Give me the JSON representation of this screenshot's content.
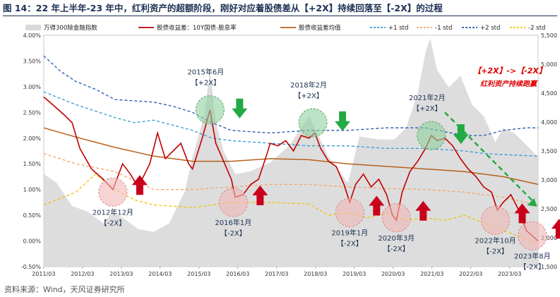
{
  "header": {
    "title": "图 14：22 年上半年-23 年中，红利资产的超额阶段，刚好对应着股债差从【+2X】持续回落至【-2X】的过程",
    "source": "资料来源：Wind，天风证券研究所"
  },
  "chart_data": {
    "type": "line",
    "x_tick_labels": [
      "2011/03",
      "2012/03",
      "2013/03",
      "2014/03",
      "2015/03",
      "2016/03",
      "2017/03",
      "2018/03",
      "2019/03",
      "2020/03",
      "2021/03",
      "2022/03",
      "2023/03"
    ],
    "y_left": {
      "ticks": [
        "4.00%",
        "3.50%",
        "3.00%",
        "2.50%",
        "2.00%",
        "1.50%",
        "1.00%",
        "0.50%",
        "0.00%",
        "-0.50%"
      ],
      "min": -0.5,
      "max": 4.0
    },
    "y_right": {
      "ticks": [
        "5,500",
        "5,000",
        "4,500",
        "4,000",
        "3,500",
        "3,000",
        "2,500",
        "2,000",
        "1,500"
      ],
      "min": 1500,
      "max": 5500
    },
    "legend": [
      {
        "name": "万得300除金融指数",
        "color": "#d9d9d9",
        "kind": "area"
      },
      {
        "name": "股债收益差：10Y国债-股息率",
        "color": "#c00000",
        "kind": "line"
      },
      {
        "name": "股债收益差均值",
        "color": "#b8601c",
        "kind": "line"
      },
      {
        "name": "+1 std",
        "color": "#2e9bd6",
        "kind": "dash"
      },
      {
        "name": "-1 std",
        "color": "#f4a66a",
        "kind": "dash"
      },
      {
        "name": "+2 std",
        "color": "#1f5ba8",
        "kind": "dash"
      },
      {
        "name": "-2 std",
        "color": "#f2c200",
        "kind": "dash"
      }
    ],
    "t_range": [
      2011.17,
      2023.9
    ],
    "spread": {
      "t": [
        2011.17,
        2011.4,
        2011.7,
        2011.9,
        2012.1,
        2012.4,
        2012.7,
        2012.95,
        2013.2,
        2013.4,
        2013.6,
        2013.9,
        2014.1,
        2014.3,
        2014.5,
        2014.7,
        2014.9,
        2015.0,
        2015.25,
        2015.45,
        2015.6,
        2015.8,
        2016.0,
        2016.1,
        2016.3,
        2016.5,
        2016.7,
        2016.9,
        2017.0,
        2017.2,
        2017.4,
        2017.6,
        2017.8,
        2018.0,
        2018.15,
        2018.3,
        2018.5,
        2018.7,
        2018.9,
        2019.05,
        2019.2,
        2019.4,
        2019.6,
        2019.8,
        2020.0,
        2020.15,
        2020.25,
        2020.4,
        2020.6,
        2020.8,
        2021.0,
        2021.15,
        2021.3,
        2021.5,
        2021.7,
        2021.9,
        2022.1,
        2022.3,
        2022.5,
        2022.7,
        2022.85,
        2023.0,
        2023.2,
        2023.4,
        2023.6,
        2023.75,
        2023.9
      ],
      "v": [
        2.8,
        2.65,
        2.45,
        2.3,
        1.8,
        1.4,
        1.2,
        1.0,
        1.5,
        1.3,
        1.05,
        1.5,
        2.1,
        1.6,
        1.75,
        1.9,
        1.5,
        1.4,
        2.0,
        2.55,
        1.9,
        1.55,
        1.2,
        0.85,
        0.9,
        1.1,
        1.2,
        1.65,
        1.9,
        1.85,
        1.95,
        1.75,
        2.05,
        2.0,
        2.1,
        1.8,
        1.55,
        1.45,
        1.1,
        0.75,
        1.1,
        1.3,
        1.05,
        1.2,
        0.9,
        0.5,
        0.4,
        0.95,
        1.35,
        1.55,
        1.8,
        2.05,
        1.95,
        2.0,
        1.85,
        1.6,
        1.4,
        1.25,
        1.05,
        0.95,
        0.6,
        0.75,
        0.9,
        0.6,
        0.2,
        0.1,
        0.0
      ]
    },
    "mean": {
      "t": [
        2011.17,
        2012.0,
        2013.0,
        2014.0,
        2015.0,
        2016.0,
        2017.0,
        2018.0,
        2019.0,
        2020.0,
        2021.0,
        2022.0,
        2023.0,
        2023.9
      ],
      "v": [
        2.2,
        2.02,
        1.82,
        1.65,
        1.55,
        1.55,
        1.6,
        1.58,
        1.5,
        1.45,
        1.4,
        1.35,
        1.25,
        1.1
      ]
    },
    "plus1": {
      "t": [
        2011.17,
        2012.0,
        2013.0,
        2013.5,
        2014.0,
        2015.0,
        2015.5,
        2016.0,
        2017.0,
        2018.0,
        2019.0,
        2020.0,
        2021.0,
        2022.0,
        2022.5,
        2023.0,
        2023.9
      ],
      "v": [
        2.9,
        2.65,
        2.4,
        2.3,
        2.35,
        2.15,
        2.0,
        1.95,
        1.9,
        1.85,
        1.85,
        1.8,
        1.8,
        1.75,
        1.7,
        1.68,
        1.65
      ]
    },
    "plus2": {
      "t": [
        2011.17,
        2011.6,
        2012.0,
        2012.5,
        2013.0,
        2014.0,
        2014.5,
        2015.0,
        2015.5,
        2016.0,
        2017.0,
        2018.0,
        2019.0,
        2020.0,
        2021.0,
        2022.0,
        2022.5,
        2023.0,
        2023.6,
        2023.9
      ],
      "v": [
        3.6,
        3.3,
        3.1,
        2.95,
        2.75,
        2.7,
        2.62,
        2.5,
        2.3,
        2.15,
        2.1,
        2.15,
        2.15,
        2.2,
        2.2,
        2.05,
        2.05,
        2.15,
        2.2,
        2.2
      ]
    },
    "minus1": {
      "t": [
        2011.17,
        2012.0,
        2013.0,
        2014.0,
        2015.0,
        2016.0,
        2017.0,
        2018.0,
        2019.0,
        2020.0,
        2021.0,
        2022.0,
        2023.0,
        2023.9
      ],
      "v": [
        1.7,
        1.5,
        1.35,
        1.0,
        1.0,
        1.05,
        1.1,
        1.1,
        1.05,
        1.02,
        1.0,
        0.95,
        0.85,
        0.7
      ]
    },
    "minus2": {
      "t": [
        2011.17,
        2012.0,
        2012.5,
        2013.0,
        2013.5,
        2014.0,
        2015.0,
        2016.0,
        2017.0,
        2018.0,
        2018.5,
        2019.0,
        2019.5,
        2020.0,
        2020.5,
        2021.0,
        2021.5,
        2022.0,
        2023.0,
        2023.9
      ],
      "v": [
        0.7,
        0.95,
        1.3,
        1.0,
        0.8,
        0.7,
        0.65,
        0.75,
        0.75,
        0.72,
        0.5,
        0.55,
        0.45,
        0.55,
        0.4,
        0.45,
        0.4,
        0.5,
        0.2,
        -0.05
      ]
    },
    "index_area": {
      "t": [
        2011.17,
        2011.5,
        2011.9,
        2012.3,
        2012.7,
        2012.95,
        2013.3,
        2013.6,
        2014.0,
        2014.4,
        2014.8,
        2015.0,
        2015.3,
        2015.45,
        2015.6,
        2015.8,
        2016.1,
        2016.5,
        2017.0,
        2017.5,
        2018.0,
        2018.15,
        2018.5,
        2019.0,
        2019.3,
        2019.8,
        2020.2,
        2020.5,
        2020.8,
        2021.0,
        2021.12,
        2021.3,
        2021.6,
        2021.9,
        2022.2,
        2022.5,
        2022.8,
        2023.0,
        2023.3,
        2023.6,
        2023.9
      ],
      "v": [
        3100,
        2950,
        2550,
        2450,
        2250,
        2450,
        2300,
        2150,
        2100,
        2250,
        2800,
        3400,
        4100,
        4900,
        4000,
        3500,
        3100,
        3150,
        3300,
        3600,
        4100,
        3900,
        3400,
        2950,
        3750,
        3700,
        3700,
        3900,
        4500,
        5200,
        5450,
        4900,
        4600,
        4800,
        4300,
        4100,
        3650,
        3900,
        3800,
        3600,
        3400
      ]
    },
    "callouts": [
      {
        "label": "2015年6月",
        "tag": "【+2X】",
        "t": 2015.45,
        "v": 2.55,
        "kind": "high"
      },
      {
        "label": "2018年2月",
        "tag": "【+2X】",
        "t": 2018.1,
        "v": 2.3,
        "kind": "high"
      },
      {
        "label": "2021年2月",
        "tag": "【+2X】",
        "t": 2021.15,
        "v": 2.05,
        "kind": "high"
      },
      {
        "label": "2012年12月",
        "tag": "【-2X】",
        "t": 2012.95,
        "v": 0.95,
        "kind": "low"
      },
      {
        "label": "2016年1月",
        "tag": "【-2X】",
        "t": 2016.05,
        "v": 0.75,
        "kind": "low"
      },
      {
        "label": "2019年1月",
        "tag": "【-2X】",
        "t": 2019.05,
        "v": 0.55,
        "kind": "low"
      },
      {
        "label": "2020年3月",
        "tag": "【-2X】",
        "t": 2020.25,
        "v": 0.45,
        "kind": "low"
      },
      {
        "label": "2022年10月",
        "tag": "【-2X】",
        "t": 2022.8,
        "v": 0.4,
        "kind": "low"
      },
      {
        "label": "2023年8月",
        "tag": "【-2X】",
        "t": 2023.75,
        "v": 0.1,
        "kind": "low"
      }
    ],
    "annotation": {
      "line1": "【+2X】->【-2X】",
      "line2": "红利资产持续跑赢"
    }
  }
}
